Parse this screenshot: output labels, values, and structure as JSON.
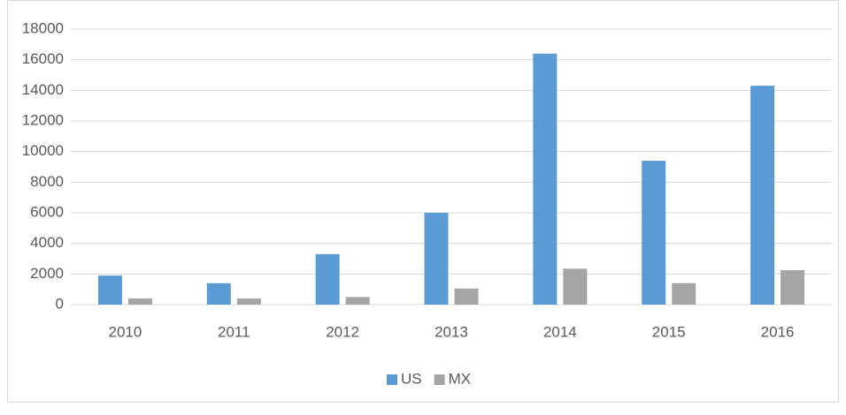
{
  "chart_data": {
    "type": "bar",
    "categories": [
      "2010",
      "2011",
      "2012",
      "2013",
      "2014",
      "2015",
      "2016"
    ],
    "series": [
      {
        "name": "US",
        "color": "#5b9bd5",
        "values": [
          1900,
          1400,
          3300,
          6000,
          16400,
          9400,
          14300
        ]
      },
      {
        "name": "MX",
        "color": "#a5a5a5",
        "values": [
          400,
          400,
          500,
          1050,
          2350,
          1400,
          2250
        ]
      }
    ],
    "ylim": [
      0,
      18000
    ],
    "yticks": [
      0,
      2000,
      4000,
      6000,
      8000,
      10000,
      12000,
      14000,
      16000,
      18000
    ],
    "grid": true,
    "legend": "bottom"
  }
}
